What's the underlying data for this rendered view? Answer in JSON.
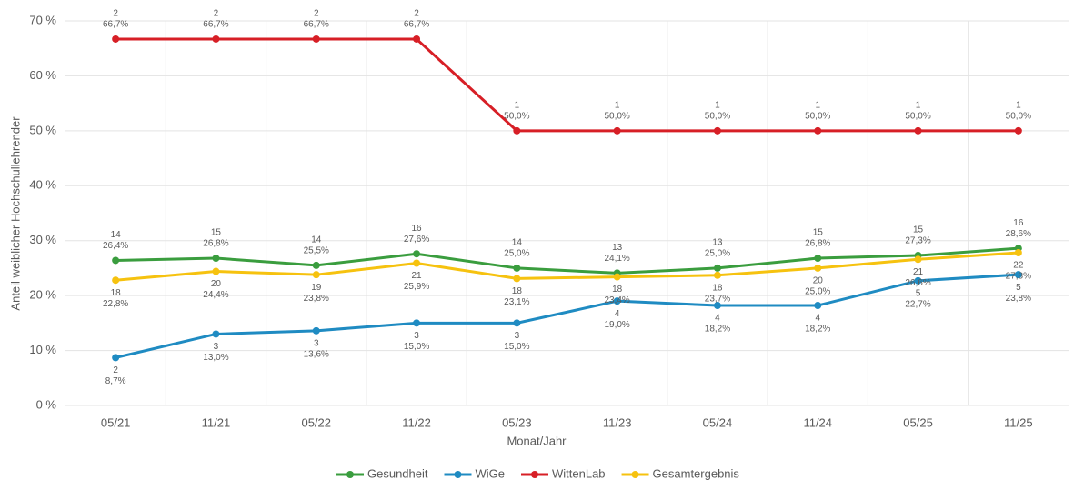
{
  "chart_data": {
    "type": "line",
    "x_label": "Monat/Jahr",
    "y_label": "Anteil weiblicher Hochschullehrender",
    "categories": [
      "05/21",
      "11/21",
      "05/22",
      "11/22",
      "05/23",
      "11/23",
      "05/24",
      "11/24",
      "05/25",
      "11/25"
    ],
    "ylim": [
      0,
      70
    ],
    "yticks": [
      {
        "value": 0,
        "label": "0 %"
      },
      {
        "value": 10,
        "label": "10 %"
      },
      {
        "value": 20,
        "label": "20 %"
      },
      {
        "value": 30,
        "label": "30 %"
      },
      {
        "value": 40,
        "label": "40 %"
      },
      {
        "value": 50,
        "label": "50 %"
      },
      {
        "value": 60,
        "label": "60 %"
      },
      {
        "value": 70,
        "label": "70 %"
      }
    ],
    "grid": true,
    "legend": "bottom",
    "series": [
      {
        "name": "Gesundheit",
        "color": "#3a9d3e",
        "label_side": "above",
        "values": [
          26.4,
          26.8,
          25.5,
          27.6,
          25.0,
          24.1,
          25.0,
          26.8,
          27.3,
          28.6
        ],
        "value_labels": [
          "26,4%",
          "26,8%",
          "25,5%",
          "27,6%",
          "25,0%",
          "24,1%",
          "25,0%",
          "26,8%",
          "27,3%",
          "28,6%"
        ],
        "counts": [
          "14",
          "15",
          "14",
          "16",
          "14",
          "13",
          "13",
          "15",
          "15",
          "16"
        ]
      },
      {
        "name": "WiGe",
        "color": "#1f8bc2",
        "label_side": "below",
        "values": [
          8.7,
          13.0,
          13.6,
          15.0,
          15.0,
          19.0,
          18.2,
          18.2,
          22.7,
          23.8
        ],
        "value_labels": [
          "8,7%",
          "13,0%",
          "13,6%",
          "15,0%",
          "15,0%",
          "19,0%",
          "18,2%",
          "18,2%",
          "22,7%",
          "23,8%"
        ],
        "counts": [
          "2",
          "3",
          "3",
          "3",
          "3",
          "4",
          "4",
          "4",
          "5",
          "5"
        ]
      },
      {
        "name": "WittenLab",
        "color": "#d71f26",
        "label_side": "above",
        "values": [
          66.7,
          66.7,
          66.7,
          66.7,
          50.0,
          50.0,
          50.0,
          50.0,
          50.0,
          50.0
        ],
        "value_labels": [
          "66,7%",
          "66,7%",
          "66,7%",
          "66,7%",
          "50,0%",
          "50,0%",
          "50,0%",
          "50,0%",
          "50,0%",
          "50,0%"
        ],
        "counts": [
          "2",
          "2",
          "2",
          "2",
          "1",
          "1",
          "1",
          "1",
          "1",
          "1"
        ]
      },
      {
        "name": "Gesamtergebnis",
        "color": "#f6c20f",
        "label_side": "below",
        "values": [
          22.8,
          24.4,
          23.8,
          25.9,
          23.1,
          23.4,
          23.7,
          25.0,
          26.6,
          27.8
        ],
        "value_labels": [
          "22,8%",
          "24,4%",
          "23,8%",
          "25,9%",
          "23,1%",
          "23,4%",
          "23,7%",
          "25,0%",
          "26,6%",
          "27,8%"
        ],
        "counts": [
          "18",
          "20",
          "19",
          "21",
          "18",
          "18",
          "18",
          "20",
          "21",
          "22"
        ]
      }
    ]
  }
}
